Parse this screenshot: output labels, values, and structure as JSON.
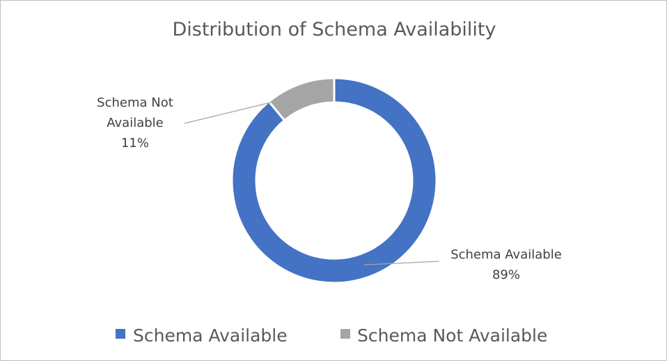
{
  "chart_data": {
    "type": "pie",
    "variant": "doughnut",
    "title": "Distribution of Schema Availability",
    "categories": [
      "Schema Available",
      "Schema Not Available"
    ],
    "values": [
      89,
      11
    ],
    "value_unit": "%",
    "data_labels": [
      {
        "lines": [
          "Schema Available",
          "89%"
        ]
      },
      {
        "lines": [
          "Schema Not",
          "Available",
          "11%"
        ]
      }
    ],
    "colors": [
      "#4472c4",
      "#a5a5a5"
    ],
    "legend": {
      "position": "bottom",
      "entries": [
        "Schema Available",
        "Schema Not Available"
      ]
    }
  }
}
